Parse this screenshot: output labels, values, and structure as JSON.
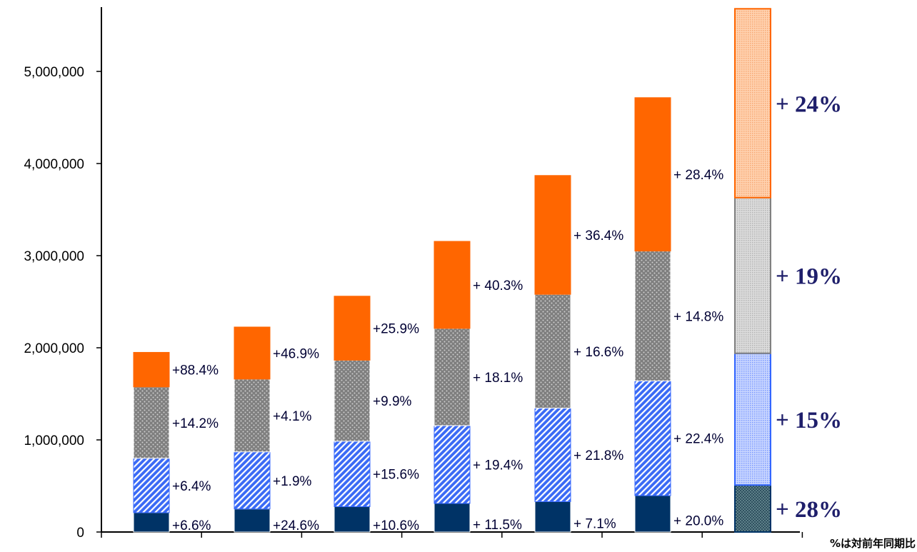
{
  "chart_data": {
    "type": "bar",
    "stacked": true,
    "title": "",
    "xlabel": "",
    "ylabel": "",
    "ylim": [
      0,
      5700000
    ],
    "y_ticks": [
      0,
      1000000,
      2000000,
      3000000,
      4000000,
      5000000
    ],
    "y_tick_labels": [
      "0",
      "1,000,000",
      "2,000,000",
      "3,000,000",
      "4,000,000",
      "5,000,000"
    ],
    "grid": false,
    "legend": "none",
    "categories": [
      "",
      "",
      "",
      "",
      "",
      "",
      ""
    ],
    "series": [
      {
        "color": "#003366",
        "values": [
          210000,
          250000,
          275000,
          310000,
          330000,
          395000,
          510000
        ],
        "growth_labels": [
          "+6.6%",
          "+24.6%",
          "+10.6%",
          "+ 11.5%",
          "+ 7.1%",
          "+ 20.0%",
          "+ 28%"
        ]
      },
      {
        "color": "#3366ff",
        "values": [
          590000,
          620000,
          710000,
          845000,
          1015000,
          1245000,
          1430000
        ],
        "growth_labels": [
          "+6.4%",
          "+1.9%",
          "+15.6%",
          "+ 19.4%",
          "+ 21.8%",
          "+ 22.4%",
          "+ 15%"
        ]
      },
      {
        "color": "#808080",
        "values": [
          775000,
          790000,
          880000,
          1055000,
          1235000,
          1410000,
          1690000
        ],
        "growth_labels": [
          "+14.2%",
          "+4.1%",
          "+9.9%",
          "+ 18.1%",
          "+ 16.6%",
          "+ 14.8%",
          "+ 19%"
        ]
      },
      {
        "color": "#ff6600",
        "values": [
          375000,
          565000,
          695000,
          945000,
          1290000,
          1665000,
          2050000
        ],
        "growth_labels": [
          "+88.4%",
          "+46.9%",
          "+25.9%",
          "+ 40.3%",
          "+ 36.4%",
          "+ 28.4%",
          "+ 24%"
        ]
      }
    ],
    "annotation": "%は対前年同期比"
  }
}
